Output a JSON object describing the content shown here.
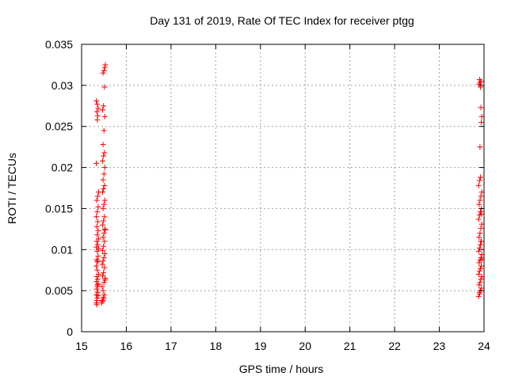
{
  "chart_data": {
    "type": "scatter",
    "title": "Day 131 of 2019, Rate Of TEC Index for receiver ptgg",
    "xlabel": "GPS time / hours",
    "ylabel": "ROTI / TECUs",
    "xlim": [
      15,
      24
    ],
    "ylim": [
      0,
      0.035
    ],
    "xticks": [
      15,
      16,
      17,
      18,
      19,
      20,
      21,
      22,
      23,
      24
    ],
    "xtick_labels": [
      "15",
      "16",
      "17",
      "18",
      "19",
      "20",
      "21",
      "22",
      "23",
      "24"
    ],
    "yticks": [
      0,
      0.005,
      0.01,
      0.015,
      0.02,
      0.025,
      0.03,
      0.035
    ],
    "ytick_labels": [
      "0",
      "0.005",
      "0.01",
      "0.015",
      "0.02",
      "0.025",
      "0.03",
      "0.035"
    ],
    "grid": true,
    "marker": "+",
    "colors": {
      "marker": "#ff0000",
      "grid": "#a0a0a0",
      "axis": "#000000"
    },
    "series": [
      {
        "name": "ROTI",
        "points": [
          [
            15.33,
            0.0035
          ],
          [
            15.34,
            0.0038
          ],
          [
            15.35,
            0.0041
          ],
          [
            15.33,
            0.0045
          ],
          [
            15.36,
            0.0048
          ],
          [
            15.34,
            0.0052
          ],
          [
            15.35,
            0.0055
          ],
          [
            15.37,
            0.0058
          ],
          [
            15.33,
            0.0061
          ],
          [
            15.36,
            0.0064
          ],
          [
            15.34,
            0.0067
          ],
          [
            15.38,
            0.007
          ],
          [
            15.35,
            0.0075
          ],
          [
            15.33,
            0.008
          ],
          [
            15.36,
            0.0085
          ],
          [
            15.34,
            0.0088
          ],
          [
            15.37,
            0.0092
          ],
          [
            15.35,
            0.0098
          ],
          [
            15.33,
            0.0103
          ],
          [
            15.36,
            0.0106
          ],
          [
            15.34,
            0.011
          ],
          [
            15.38,
            0.0113
          ],
          [
            15.35,
            0.0118
          ],
          [
            15.37,
            0.0123
          ],
          [
            15.34,
            0.0128
          ],
          [
            15.36,
            0.0134
          ],
          [
            15.33,
            0.014
          ],
          [
            15.35,
            0.0146
          ],
          [
            15.37,
            0.0152
          ],
          [
            15.34,
            0.016
          ],
          [
            15.36,
            0.0165
          ],
          [
            15.38,
            0.017
          ],
          [
            15.33,
            0.0205
          ],
          [
            15.35,
            0.0258
          ],
          [
            15.36,
            0.0263
          ],
          [
            15.34,
            0.0268
          ],
          [
            15.37,
            0.0272
          ],
          [
            15.35,
            0.0277
          ],
          [
            15.33,
            0.0281
          ],
          [
            15.34,
            0.0033
          ],
          [
            15.37,
            0.0044
          ],
          [
            15.36,
            0.0057
          ],
          [
            15.35,
            0.0086
          ],
          [
            15.38,
            0.0101
          ],
          [
            15.45,
            0.0035
          ],
          [
            15.47,
            0.0038
          ],
          [
            15.49,
            0.0042
          ],
          [
            15.51,
            0.0045
          ],
          [
            15.48,
            0.005
          ],
          [
            15.46,
            0.0055
          ],
          [
            15.5,
            0.006
          ],
          [
            15.52,
            0.0063
          ],
          [
            15.47,
            0.0068
          ],
          [
            15.49,
            0.0072
          ],
          [
            15.51,
            0.0078
          ],
          [
            15.46,
            0.0082
          ],
          [
            15.48,
            0.0086
          ],
          [
            15.5,
            0.009
          ],
          [
            15.52,
            0.0095
          ],
          [
            15.47,
            0.0099
          ],
          [
            15.49,
            0.0104
          ],
          [
            15.51,
            0.011
          ],
          [
            15.48,
            0.0115
          ],
          [
            15.5,
            0.012
          ],
          [
            15.52,
            0.0125
          ],
          [
            15.47,
            0.013
          ],
          [
            15.49,
            0.0135
          ],
          [
            15.51,
            0.014
          ],
          [
            15.48,
            0.015
          ],
          [
            15.5,
            0.0155
          ],
          [
            15.52,
            0.016
          ],
          [
            15.47,
            0.017
          ],
          [
            15.49,
            0.0174
          ],
          [
            15.51,
            0.0178
          ],
          [
            15.48,
            0.0185
          ],
          [
            15.5,
            0.0192
          ],
          [
            15.52,
            0.02
          ],
          [
            15.47,
            0.0208
          ],
          [
            15.49,
            0.0214
          ],
          [
            15.51,
            0.0218
          ],
          [
            15.48,
            0.0228
          ],
          [
            15.5,
            0.0245
          ],
          [
            15.52,
            0.0262
          ],
          [
            15.47,
            0.027
          ],
          [
            15.49,
            0.0275
          ],
          [
            15.51,
            0.0298
          ],
          [
            15.48,
            0.0315
          ],
          [
            15.5,
            0.0318
          ],
          [
            15.52,
            0.0322
          ],
          [
            15.53,
            0.0325
          ],
          [
            15.49,
            0.004
          ],
          [
            15.53,
            0.0065
          ],
          [
            15.46,
            0.0037
          ],
          [
            15.53,
            0.0124
          ],
          [
            23.88,
            0.0043
          ],
          [
            23.9,
            0.0046
          ],
          [
            23.92,
            0.005
          ],
          [
            23.94,
            0.0053
          ],
          [
            23.89,
            0.0057
          ],
          [
            23.91,
            0.006
          ],
          [
            23.93,
            0.0064
          ],
          [
            23.95,
            0.0067
          ],
          [
            23.88,
            0.007
          ],
          [
            23.9,
            0.0074
          ],
          [
            23.92,
            0.0077
          ],
          [
            23.94,
            0.008
          ],
          [
            23.89,
            0.0084
          ],
          [
            23.91,
            0.0087
          ],
          [
            23.93,
            0.009
          ],
          [
            23.95,
            0.0094
          ],
          [
            23.88,
            0.0098
          ],
          [
            23.9,
            0.0102
          ],
          [
            23.92,
            0.0106
          ],
          [
            23.94,
            0.011
          ],
          [
            23.89,
            0.0115
          ],
          [
            23.91,
            0.012
          ],
          [
            23.93,
            0.0126
          ],
          [
            23.95,
            0.0131
          ],
          [
            23.88,
            0.0137
          ],
          [
            23.9,
            0.0142
          ],
          [
            23.92,
            0.0146
          ],
          [
            23.94,
            0.015
          ],
          [
            23.89,
            0.0155
          ],
          [
            23.91,
            0.016
          ],
          [
            23.93,
            0.0165
          ],
          [
            23.95,
            0.017
          ],
          [
            23.88,
            0.0178
          ],
          [
            23.9,
            0.0184
          ],
          [
            23.92,
            0.0188
          ],
          [
            23.91,
            0.0225
          ],
          [
            23.94,
            0.0255
          ],
          [
            23.95,
            0.0262
          ],
          [
            23.93,
            0.0273
          ],
          [
            23.89,
            0.0301
          ],
          [
            23.91,
            0.0303
          ],
          [
            23.93,
            0.0305
          ],
          [
            23.9,
            0.0307
          ],
          [
            23.92,
            0.0298
          ],
          [
            23.94,
            0.0143
          ],
          [
            23.9,
            0.0048
          ],
          [
            23.93,
            0.011
          ],
          [
            23.95,
            0.0088
          ]
        ]
      }
    ]
  }
}
